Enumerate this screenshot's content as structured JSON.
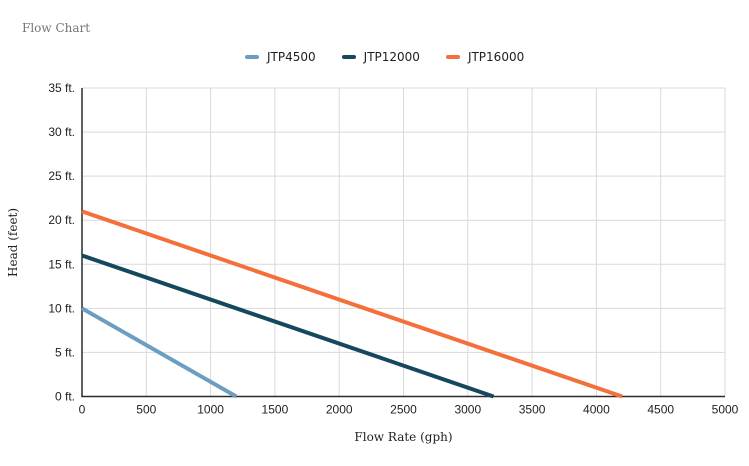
{
  "chart_data": {
    "type": "line",
    "title": "Flow Chart",
    "xlabel": "Flow Rate (gph)",
    "ylabel": "Head (feet)",
    "xlim": [
      0,
      5000
    ],
    "ylim": [
      0,
      35
    ],
    "x_ticks": [
      0,
      500,
      1000,
      1500,
      2000,
      2500,
      3000,
      3500,
      4000,
      4500,
      5000
    ],
    "x_tick_labels": [
      "0",
      "500",
      "1000",
      "1500",
      "2000",
      "2500",
      "3000",
      "3500",
      "4000",
      "4500",
      "5000"
    ],
    "y_ticks": [
      0,
      5,
      10,
      15,
      20,
      25,
      30,
      35
    ],
    "y_tick_labels": [
      "0 ft.",
      "5 ft.",
      "10 ft.",
      "15 ft.",
      "20 ft.",
      "25 ft.",
      "30 ft.",
      "35 ft."
    ],
    "grid": true,
    "legend_position": "top",
    "series": [
      {
        "name": "JTP4500",
        "color": "#6D9EC2",
        "points": [
          [
            0,
            10
          ],
          [
            1200,
            0
          ]
        ]
      },
      {
        "name": "JTP12000",
        "color": "#15485E",
        "points": [
          [
            0,
            16
          ],
          [
            3200,
            0
          ]
        ]
      },
      {
        "name": "JTP16000",
        "color": "#F4703A",
        "points": [
          [
            0,
            21
          ],
          [
            4200,
            0
          ]
        ]
      }
    ],
    "style": {
      "grid_color": "#D9D9D9",
      "axis_color": "#2B2B2B",
      "tick_label_color": "#1F1F1F",
      "title_color": "#757575",
      "background": "#FFFFFF",
      "line_width": 4
    }
  }
}
